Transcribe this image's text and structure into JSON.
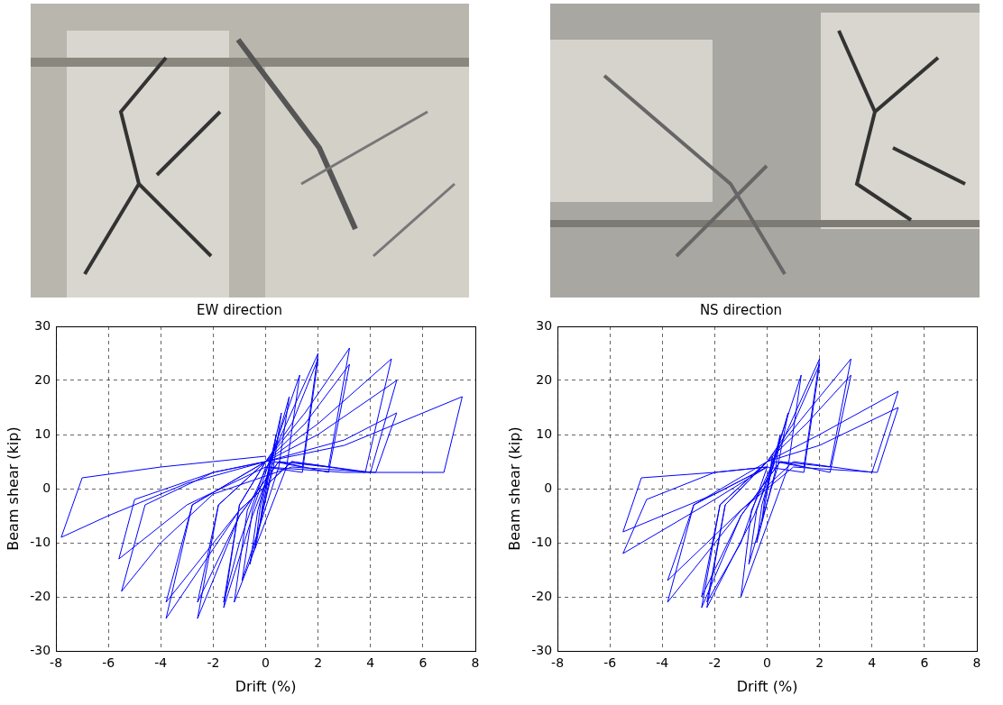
{
  "chart_data": [
    {
      "type": "line",
      "title": "EW direction",
      "x_label": "Drift (%)",
      "y_label": "Beam shear (kip)",
      "x": [
        0,
        0.2,
        0.1,
        -0.2,
        -0.1,
        0.4,
        0.2,
        -0.4,
        -0.2,
        0.6,
        0.3,
        -0.6,
        -0.3,
        0.9,
        0.5,
        -0.9,
        -0.5,
        1.3,
        0.8,
        -1.2,
        -0.7,
        2.0,
        1.4,
        0.3,
        -0.5,
        -1.6,
        -1.0,
        0,
        1.0,
        2.0,
        1.4,
        0,
        -1.0,
        -1.6,
        -1.0,
        0,
        1.5,
        3.2,
        2.4,
        0.5,
        -1.0,
        -2.6,
        -1.8,
        0,
        1.5,
        3.2,
        2.4,
        0.5,
        -1.0,
        -2.6,
        -1.8,
        0,
        2.0,
        4.8,
        3.8,
        1.0,
        -1.0,
        -3.8,
        -2.8,
        0,
        2.0,
        5.0,
        4.0,
        1.0,
        -1.0,
        -3.8,
        -2.8,
        0,
        3.0,
        5.0,
        4.2,
        1.0,
        -2.0,
        -4.0,
        -5.5,
        -4.6,
        -2.0,
        0,
        3.0,
        6.0,
        7.5,
        6.8,
        3.0,
        0,
        -3.0,
        -5.6,
        -5.0,
        -2.0,
        0,
        -3.0,
        -6.0,
        -7.8,
        -7.0,
        -4.0,
        0
      ],
      "values": [
        0,
        6,
        2,
        -6,
        -2,
        10,
        3,
        -11,
        -3,
        14,
        4,
        -14,
        -4,
        17,
        4,
        -17,
        -4,
        21,
        4,
        -21,
        -4,
        25,
        4,
        5,
        -5,
        -22,
        -3,
        5,
        12,
        24,
        3,
        4,
        -10,
        -21,
        -3,
        5,
        14,
        26,
        4,
        5,
        -5,
        -24,
        -3,
        5,
        12,
        23,
        3,
        5,
        -5,
        -21,
        -3,
        5,
        12,
        24,
        3,
        5,
        -4,
        -24,
        -3,
        5,
        10,
        20,
        3,
        5,
        -4,
        -21,
        -3,
        5,
        9,
        14,
        3,
        4,
        -1,
        -10,
        -19,
        -3,
        3,
        5,
        8,
        14,
        17,
        3,
        3,
        4,
        -3,
        -13,
        -2,
        3,
        5,
        1,
        -5,
        -9,
        2,
        4,
        6
      ],
      "color": "#0000ff",
      "xlim": [
        -8,
        8
      ],
      "xticks": [
        -8,
        -6,
        -4,
        -2,
        0,
        2,
        4,
        6,
        8
      ],
      "ylim": [
        -30,
        30
      ],
      "yticks": [
        -30,
        -20,
        -10,
        0,
        10,
        20,
        30
      ],
      "grid": true
    },
    {
      "type": "line",
      "title": "NS direction",
      "x_label": "Drift (%)",
      "y_label": "Beam shear (kip)",
      "x": [
        0,
        0.2,
        0.1,
        -0.2,
        -0.1,
        0.5,
        0.3,
        -0.4,
        -0.2,
        0.8,
        0.4,
        -0.7,
        -0.4,
        1.3,
        0.8,
        -1.0,
        -0.6,
        2.0,
        1.4,
        0.3,
        -0.5,
        -2.3,
        -1.6,
        0,
        1.0,
        2.0,
        1.4,
        0,
        -1.0,
        -2.3,
        -1.6,
        0,
        1.5,
        3.2,
        2.4,
        0.5,
        -1.0,
        -2.5,
        -1.8,
        0,
        1.5,
        3.2,
        2.4,
        0.5,
        -1.0,
        -2.5,
        -1.8,
        0,
        2.0,
        5.0,
        4.0,
        1.0,
        -1.0,
        -3.8,
        -2.8,
        0,
        2.0,
        5.0,
        4.2,
        1.0,
        -1.0,
        -3.8,
        -2.8,
        0,
        -2.0,
        -5.5,
        -4.6,
        -2.0,
        0,
        -2.0,
        -5.5,
        -4.8,
        -2.0,
        0
      ],
      "values": [
        0,
        6,
        2,
        -6,
        -2,
        10,
        3,
        -10,
        -3,
        14,
        4,
        -14,
        -4,
        21,
        4,
        -20,
        -4,
        24,
        4,
        5,
        -5,
        -22,
        -3,
        5,
        12,
        23,
        3,
        4,
        -10,
        -21,
        -3,
        5,
        14,
        24,
        4,
        5,
        -5,
        -22,
        -3,
        5,
        12,
        21,
        3,
        5,
        -5,
        -20,
        -3,
        5,
        10,
        18,
        3,
        5,
        -4,
        -21,
        -3,
        5,
        8,
        15,
        3,
        4,
        -4,
        -17,
        -3,
        4,
        -2,
        -12,
        -2,
        3,
        4,
        -1,
        -8,
        2,
        3,
        4
      ],
      "color": "#0000ff",
      "xlim": [
        -8,
        8
      ],
      "xticks": [
        -8,
        -6,
        -4,
        -2,
        0,
        2,
        4,
        6,
        8
      ],
      "ylim": [
        -30,
        30
      ],
      "yticks": [
        -30,
        -20,
        -10,
        0,
        10,
        20,
        30
      ],
      "grid": true
    }
  ]
}
